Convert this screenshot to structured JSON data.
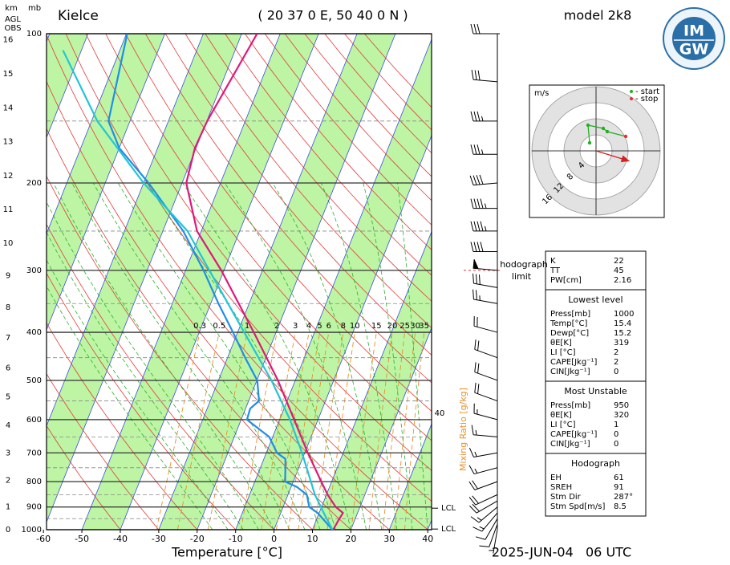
{
  "chart_data": {
    "type": "skewt",
    "title": "Kielce",
    "subtitle": "( 20 37 0 E, 50 40 0 N )",
    "model": "model 2k8",
    "date": "2025-JUN-04   06 UTC",
    "xlabel": "Temperature [°C]",
    "xlim": [
      -59.2,
      41
    ],
    "xticks": [
      -60,
      -50,
      -40,
      -30,
      -20,
      -10,
      0,
      10,
      20,
      30,
      40
    ],
    "ylim": [
      1000,
      100
    ],
    "yticks": [
      100,
      200,
      300,
      400,
      500,
      600,
      700,
      800,
      900,
      1000
    ],
    "log_y": true,
    "pressure_unit": "mb",
    "height_axis": {
      "labels": [
        "km",
        "AGL",
        "OBS"
      ],
      "ticks": [
        0,
        1,
        2,
        3,
        4,
        5,
        6,
        7,
        8,
        9,
        10,
        11,
        12,
        13,
        14,
        15,
        16
      ]
    },
    "series": [
      {
        "color": "#e0187a",
        "levels": [
          1000,
          956,
          925,
          900,
          850,
          800,
          700,
          600,
          500,
          400,
          300,
          250,
          200,
          170,
          150,
          100
        ],
        "values": [
          15.4,
          15.8,
          16.2,
          13.7,
          10.3,
          7.3,
          0.8,
          -6.2,
          -14.5,
          -25.8,
          -40.7,
          -51.1,
          -58.9,
          -60.3,
          -59.9,
          -56
        ]
      },
      {
        "color": "#1f8ee6",
        "levels": [
          1000,
          950,
          925,
          900,
          850,
          820,
          800,
          750,
          720,
          700,
          650,
          600,
          570,
          550,
          500,
          450,
          400,
          350,
          300,
          250,
          200,
          170,
          150,
          120,
          100
        ],
        "values": [
          15.2,
          11.5,
          9.6,
          6.8,
          4.9,
          1.5,
          -2.1,
          -3.5,
          -4.4,
          -7.2,
          -10.9,
          -18.5,
          -18.8,
          -17.3,
          -19.9,
          -25.4,
          -31.2,
          -38,
          -45.3,
          -54.7,
          -68.7,
          -80,
          -85.6,
          -87.9,
          -89.8
        ]
      },
      {
        "color": "#22c4d8",
        "levels": [
          1000,
          925,
          850,
          700,
          600,
          500,
          400,
          300,
          250,
          200,
          150,
          108
        ],
        "values": [
          15.2,
          11.2,
          7.0,
          -0.7,
          -7.3,
          -16.2,
          -28.3,
          -43.8,
          -53.6,
          -70,
          -88.5,
          -104.8
        ]
      }
    ],
    "mixing_ratio": {
      "label": "Mixing Ratio [g/kg]",
      "color": "#e8902a",
      "values": [
        0.3,
        0.5,
        1,
        2,
        3,
        4,
        5,
        6,
        8,
        10,
        15,
        20,
        25,
        30,
        35
      ]
    },
    "side_label": "40",
    "lcl": {
      "label": "LCL",
      "levels": [
        905,
        997
      ]
    },
    "hodograph_limit": {
      "labels": [
        "hodograph",
        "limit"
      ],
      "level": 300
    },
    "winds": {
      "levels": [
        100,
        125,
        150,
        175,
        200,
        225,
        250,
        275,
        300,
        325,
        350,
        400,
        450,
        500,
        550,
        600,
        650,
        700,
        750,
        800,
        850,
        875,
        900,
        925,
        950,
        975,
        1000
      ],
      "direction": [
        270,
        275,
        270,
        270,
        265,
        270,
        270,
        270,
        275,
        280,
        280,
        285,
        290,
        290,
        290,
        285,
        275,
        260,
        255,
        250,
        245,
        240,
        230,
        220,
        210,
        200,
        190
      ],
      "speed": [
        30,
        30,
        35,
        35,
        40,
        45,
        45,
        40,
        50,
        30,
        25,
        20,
        20,
        20,
        20,
        15,
        15,
        15,
        15,
        20,
        20,
        20,
        15,
        15,
        10,
        10,
        5
      ]
    },
    "hodograph": {
      "unit": "m/s",
      "rings": [
        4,
        8,
        12,
        16
      ],
      "legend": [
        "- start",
        "- stop"
      ],
      "u": [
        -1.6,
        -2,
        1.8,
        2.8,
        7.4
      ],
      "v": [
        2,
        6.4,
        5.6,
        4.8,
        3.6
      ]
    },
    "logo": [
      "IM",
      "GW"
    ],
    "indices": [
      {
        "rows": [
          [
            "K",
            22
          ],
          [
            "TT",
            45
          ],
          [
            "PW[cm]",
            2.16
          ]
        ]
      },
      {
        "heading": "Lowest level",
        "rows": [
          [
            "Press[mb]",
            1000
          ],
          [
            "Temp[°C]",
            15.4
          ],
          [
            "Dewp[°C]",
            15.2
          ],
          [
            "θE[K]",
            319
          ],
          [
            "LI [°C]",
            2
          ],
          [
            "CAPE[Jkg⁻¹]",
            2
          ],
          [
            "CIN[Jkg⁻¹]",
            0
          ]
        ]
      },
      {
        "heading": "Most Unstable",
        "rows": [
          [
            "Press[mb]",
            950
          ],
          [
            "θE[K]",
            320
          ],
          [
            "LI [°C]",
            1
          ],
          [
            "CAPE[Jkg⁻¹]",
            0
          ],
          [
            "CIN[Jkg⁻¹]",
            0
          ]
        ]
      },
      {
        "heading": "Hodograph",
        "rows": [
          [
            "EH",
            61
          ],
          [
            "SREH",
            91
          ],
          [
            "Stm Dir",
            {
              "value": 287,
              "label": "287°"
            }
          ],
          [
            "Stm Spd[m/s]",
            8.5
          ]
        ]
      }
    ]
  }
}
